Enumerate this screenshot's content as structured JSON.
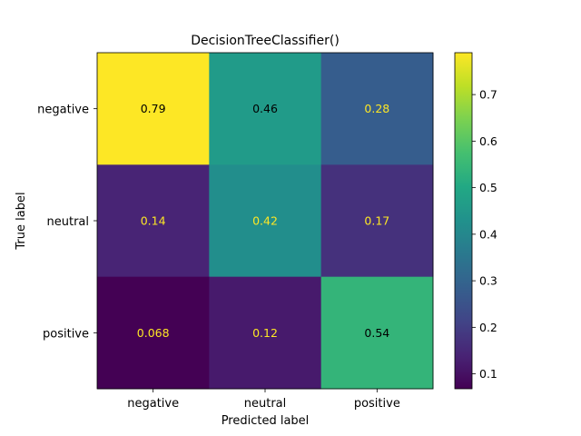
{
  "chart_data": {
    "type": "heatmap",
    "title": "DecisionTreeClassifier()",
    "xlabel": "Predicted label",
    "ylabel": "True label",
    "x_categories": [
      "negative",
      "neutral",
      "positive"
    ],
    "y_categories": [
      "negative",
      "neutral",
      "positive"
    ],
    "values": [
      [
        0.79,
        0.46,
        0.28
      ],
      [
        0.14,
        0.42,
        0.17
      ],
      [
        0.068,
        0.12,
        0.54
      ]
    ],
    "cell_labels": [
      [
        "0.79",
        "0.46",
        "0.28"
      ],
      [
        "0.14",
        "0.42",
        "0.17"
      ],
      [
        "0.068",
        "0.12",
        "0.54"
      ]
    ],
    "colormap": "viridis",
    "colorbar": {
      "vmin": 0.068,
      "vmax": 0.79,
      "ticks": [
        0.1,
        0.2,
        0.3,
        0.4,
        0.5,
        0.6,
        0.7
      ],
      "tick_labels": [
        "0.1",
        "0.2",
        "0.3",
        "0.4",
        "0.5",
        "0.6",
        "0.7"
      ]
    },
    "text_colors": {
      "dark": "#000000",
      "light": "#fde725"
    },
    "grid": false
  }
}
